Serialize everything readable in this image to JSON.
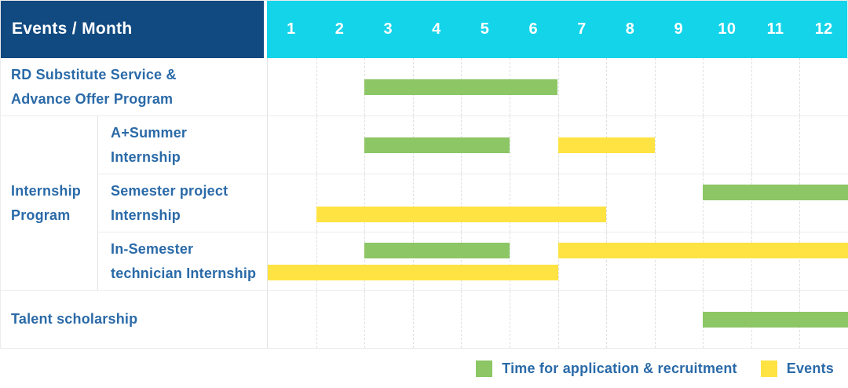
{
  "colors": {
    "navy": "#114a80",
    "cyan": "#14d4ea",
    "green": "#8cc665",
    "yellow": "#ffe342",
    "label_blue": "#2a6aa8"
  },
  "table": {
    "header": {
      "title": "Events / Month",
      "months": [
        "1",
        "2",
        "3",
        "4",
        "5",
        "6",
        "7",
        "8",
        "9",
        "10",
        "11",
        "12"
      ]
    },
    "group_label": "Internship\nProgram",
    "rows": [
      {
        "id": "rd-substitute-service",
        "label": "RD Substitute Service &\nAdvance Offer Program",
        "lanes": [
          [
            {
              "color": "green",
              "start": 3,
              "end": 6
            }
          ]
        ]
      },
      {
        "id": "a-plus-summer-internship",
        "label": "A+Summer\nInternship",
        "lanes": [
          [
            {
              "color": "green",
              "start": 3,
              "end": 5
            },
            {
              "color": "yellow",
              "start": 7,
              "end": 8
            }
          ]
        ]
      },
      {
        "id": "semester-project-internship",
        "label": "Semester project\nInternship",
        "lanes": [
          [
            {
              "color": "green",
              "start": 10,
              "end": 12
            }
          ],
          [
            {
              "color": "yellow",
              "start": 2,
              "end": 7
            }
          ]
        ]
      },
      {
        "id": "in-semester-technician-internship",
        "label": "In-Semester\ntechnician Internship",
        "lanes": [
          [
            {
              "color": "green",
              "start": 3,
              "end": 5
            },
            {
              "color": "yellow",
              "start": 7,
              "end": 12
            }
          ],
          [
            {
              "color": "yellow",
              "start": 1,
              "end": 6
            }
          ]
        ]
      },
      {
        "id": "talent-scholarship",
        "label": "Talent scholarship",
        "lanes": [
          [
            {
              "color": "green",
              "start": 10,
              "end": 12
            }
          ]
        ]
      }
    ]
  },
  "legend": {
    "items": [
      {
        "color": "green",
        "label": "Time for application & recruitment"
      },
      {
        "color": "yellow",
        "label": "Events"
      }
    ]
  },
  "chart_data": {
    "type": "bar",
    "subtype": "gantt",
    "title": "Events / Month",
    "x_axis": {
      "label": "Month",
      "ticks": [
        1,
        2,
        3,
        4,
        5,
        6,
        7,
        8,
        9,
        10,
        11,
        12
      ],
      "range": [
        1,
        12
      ]
    },
    "grid": true,
    "legend_position": "bottom-right",
    "series": [
      {
        "name": "Time for application & recruitment",
        "color": "#8cc665",
        "bars": [
          {
            "event": "RD Substitute Service & Advance Offer Program",
            "start_month": 3,
            "end_month": 6
          },
          {
            "event": "A+Summer Internship",
            "start_month": 3,
            "end_month": 5
          },
          {
            "event": "Semester project Internship",
            "start_month": 10,
            "end_month": 12
          },
          {
            "event": "In-Semester technician Internship",
            "start_month": 3,
            "end_month": 5
          },
          {
            "event": "Talent scholarship",
            "start_month": 10,
            "end_month": 12
          }
        ]
      },
      {
        "name": "Events",
        "color": "#ffe342",
        "bars": [
          {
            "event": "A+Summer Internship",
            "start_month": 7,
            "end_month": 8
          },
          {
            "event": "Semester project Internship",
            "start_month": 2,
            "end_month": 7
          },
          {
            "event": "In-Semester technician Internship",
            "start_month": 7,
            "end_month": 12
          },
          {
            "event": "In-Semester technician Internship",
            "start_month": 1,
            "end_month": 6
          }
        ]
      }
    ]
  }
}
